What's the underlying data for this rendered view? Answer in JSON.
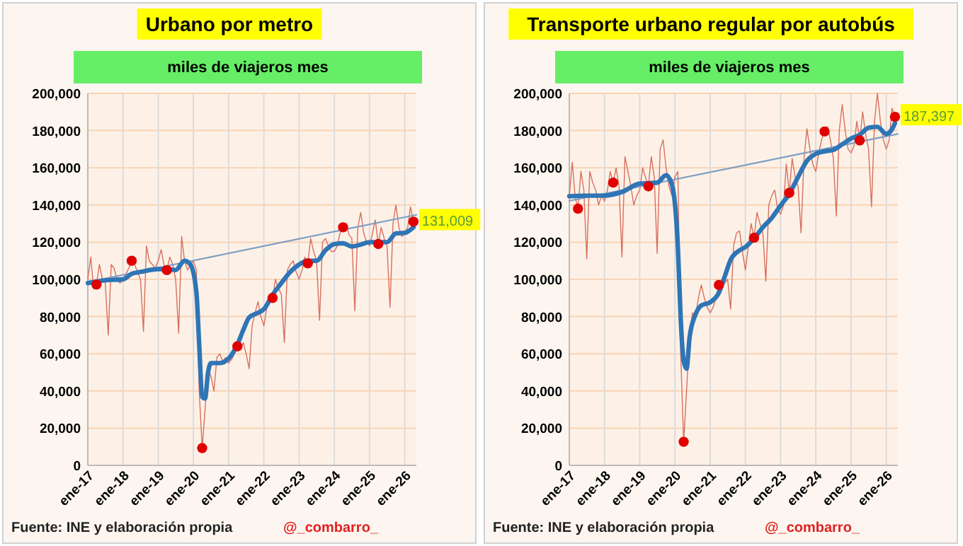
{
  "chart_data": [
    {
      "type": "line",
      "title": "Urbano por metro",
      "subtitle": "miles de viajeros mes",
      "grid": true,
      "legend": false,
      "xlim": [
        "2017-01",
        "2026-05"
      ],
      "xticks": [
        {
          "value": "2017-01",
          "label": "ene-17"
        },
        {
          "value": "2018-01",
          "label": "ene-18"
        },
        {
          "value": "2019-01",
          "label": "ene-19"
        },
        {
          "value": "2020-01",
          "label": "ene-20"
        },
        {
          "value": "2021-01",
          "label": "ene-21"
        },
        {
          "value": "2022-01",
          "label": "ene-22"
        },
        {
          "value": "2023-01",
          "label": "ene-23"
        },
        {
          "value": "2024-01",
          "label": "ene-24"
        },
        {
          "value": "2025-01",
          "label": "ene-25"
        },
        {
          "value": "2026-01",
          "label": "ene-26"
        }
      ],
      "ylim": [
        0,
        200000
      ],
      "yticks": [
        {
          "value": 0,
          "label": "0"
        },
        {
          "value": 20000,
          "label": "20,000"
        },
        {
          "value": 40000,
          "label": "40,000"
        },
        {
          "value": 60000,
          "label": "60,000"
        },
        {
          "value": 80000,
          "label": "80,000"
        },
        {
          "value": 100000,
          "label": "100,000"
        },
        {
          "value": 120000,
          "label": "120,000"
        },
        {
          "value": 140000,
          "label": "140,000"
        },
        {
          "value": 160000,
          "label": "160,000"
        },
        {
          "value": 180000,
          "label": "180,000"
        },
        {
          "value": 200000,
          "label": "200,000"
        }
      ],
      "x": [
        "2017-01",
        "2017-02",
        "2017-03",
        "2017-04",
        "2017-05",
        "2017-06",
        "2017-07",
        "2017-08",
        "2017-09",
        "2017-10",
        "2017-11",
        "2017-12",
        "2018-01",
        "2018-02",
        "2018-03",
        "2018-04",
        "2018-05",
        "2018-06",
        "2018-07",
        "2018-08",
        "2018-09",
        "2018-10",
        "2018-11",
        "2018-12",
        "2019-01",
        "2019-02",
        "2019-03",
        "2019-04",
        "2019-05",
        "2019-06",
        "2019-07",
        "2019-08",
        "2019-09",
        "2019-10",
        "2019-11",
        "2019-12",
        "2020-01",
        "2020-02",
        "2020-03",
        "2020-04",
        "2020-05",
        "2020-06",
        "2020-07",
        "2020-08",
        "2020-09",
        "2020-10",
        "2020-11",
        "2020-12",
        "2021-01",
        "2021-02",
        "2021-03",
        "2021-04",
        "2021-05",
        "2021-06",
        "2021-07",
        "2021-08",
        "2021-09",
        "2021-10",
        "2021-11",
        "2021-12",
        "2022-01",
        "2022-02",
        "2022-03",
        "2022-04",
        "2022-05",
        "2022-06",
        "2022-07",
        "2022-08",
        "2022-09",
        "2022-10",
        "2022-11",
        "2022-12",
        "2023-01",
        "2023-02",
        "2023-03",
        "2023-04",
        "2023-05",
        "2023-06",
        "2023-07",
        "2023-08",
        "2023-09",
        "2023-10",
        "2023-11",
        "2023-12",
        "2024-01",
        "2024-02",
        "2024-03",
        "2024-04",
        "2024-05",
        "2024-06",
        "2024-07",
        "2024-08",
        "2024-09",
        "2024-10",
        "2024-11",
        "2024-12",
        "2025-01",
        "2025-02",
        "2025-03",
        "2025-04",
        "2025-05",
        "2025-06",
        "2025-07",
        "2025-08",
        "2025-09",
        "2025-10",
        "2025-11",
        "2025-12",
        "2026-01",
        "2026-02",
        "2026-03",
        "2026-04"
      ],
      "series": [
        {
          "type": "line",
          "color": "#d8705e",
          "values": [
            100000,
            112000,
            95000,
            97200,
            108000,
            100000,
            98000,
            70000,
            108000,
            106000,
            100000,
            98000,
            100000,
            103000,
            106000,
            110000,
            108000,
            104000,
            100000,
            72000,
            118000,
            110000,
            108000,
            106000,
            110000,
            116000,
            108000,
            105000,
            112000,
            108000,
            100000,
            71000,
            123000,
            110000,
            105000,
            108000,
            110000,
            105000,
            40000,
            9300,
            30000,
            52000,
            48000,
            40000,
            58000,
            60000,
            56000,
            58000,
            55000,
            57000,
            60000,
            64000,
            62000,
            66000,
            60000,
            52000,
            75000,
            82000,
            88000,
            80000,
            75000,
            85000,
            91000,
            90000,
            100000,
            95000,
            92000,
            66000,
            105000,
            108000,
            110000,
            104000,
            100000,
            105000,
            112000,
            108600,
            122000,
            115000,
            110000,
            78000,
            120000,
            122000,
            118000,
            115000,
            115000,
            118000,
            125000,
            128000,
            130000,
            124000,
            122000,
            83000,
            128000,
            136000,
            125000,
            120000,
            118000,
            125000,
            132000,
            119000,
            128000,
            122000,
            118000,
            85000,
            130000,
            140000,
            128000,
            123000,
            125000,
            128000,
            139000,
            131009
          ]
        },
        {
          "type": "line",
          "color": "#2e75b6",
          "x": [
            "2017-01",
            "2017-07",
            "2018-01",
            "2018-04",
            "2018-07",
            "2019-01",
            "2019-04",
            "2019-07",
            "2019-10",
            "2019-12",
            "2020-02",
            "2020-03",
            "2020-04",
            "2020-05",
            "2020-06",
            "2020-07",
            "2020-10",
            "2021-01",
            "2021-04",
            "2021-06",
            "2021-08",
            "2021-11",
            "2022-01",
            "2022-04",
            "2022-07",
            "2022-10",
            "2023-01",
            "2023-04",
            "2023-07",
            "2023-10",
            "2024-01",
            "2024-04",
            "2024-07",
            "2024-10",
            "2025-01",
            "2025-04",
            "2025-07",
            "2025-10",
            "2026-01",
            "2026-04"
          ],
          "values": [
            98000,
            99500,
            100000,
            103000,
            104000,
            105500,
            105500,
            105000,
            110000,
            108000,
            93000,
            65000,
            37000,
            36000,
            50000,
            55000,
            55000,
            57500,
            65000,
            72700,
            79500,
            82000,
            84000,
            91700,
            98000,
            104000,
            108000,
            110000,
            110000,
            115600,
            119000,
            119400,
            117700,
            118700,
            120000,
            120000,
            120000,
            124700,
            125000,
            128000
          ]
        },
        {
          "type": "scatter",
          "color": "#e00000",
          "marker": "circle",
          "x": [
            "2017-04",
            "2018-04",
            "2019-04",
            "2020-04",
            "2021-04",
            "2022-04",
            "2023-04",
            "2024-04",
            "2025-04",
            "2026-04"
          ],
          "values": [
            97200,
            110000,
            105000,
            9300,
            64000,
            90000,
            108600,
            128000,
            119000,
            131009
          ],
          "value_labels": [
            null,
            null,
            null,
            null,
            null,
            null,
            null,
            null,
            null,
            "131,009"
          ]
        },
        {
          "type": "line",
          "color": "#7f9fc4",
          "x": [
            "2017-01",
            "2026-05"
          ],
          "values": [
            98500,
            134700
          ]
        }
      ],
      "annotations": [
        "Fuente: INE  y elaboración propia",
        "@_combarro_"
      ]
    },
    {
      "type": "line",
      "title": "Transporte urbano regular por autobús",
      "subtitle": "miles de viajeros mes",
      "grid": true,
      "legend": false,
      "xlim": [
        "2017-01",
        "2026-05"
      ],
      "xticks": [
        {
          "value": "2017-01",
          "label": "ene-17"
        },
        {
          "value": "2018-01",
          "label": "ene-18"
        },
        {
          "value": "2019-01",
          "label": "ene-19"
        },
        {
          "value": "2020-01",
          "label": "ene-20"
        },
        {
          "value": "2021-01",
          "label": "ene-21"
        },
        {
          "value": "2022-01",
          "label": "ene-22"
        },
        {
          "value": "2023-01",
          "label": "ene-23"
        },
        {
          "value": "2024-01",
          "label": "ene-24"
        },
        {
          "value": "2025-01",
          "label": "ene-25"
        },
        {
          "value": "2026-01",
          "label": "ene-26"
        }
      ],
      "ylim": [
        0,
        200000
      ],
      "yticks": [
        {
          "value": 0,
          "label": "0"
        },
        {
          "value": 20000,
          "label": "20,000"
        },
        {
          "value": 40000,
          "label": "40,000"
        },
        {
          "value": 60000,
          "label": "60,000"
        },
        {
          "value": 80000,
          "label": "80,000"
        },
        {
          "value": 100000,
          "label": "100,000"
        },
        {
          "value": 120000,
          "label": "120,000"
        },
        {
          "value": 140000,
          "label": "140,000"
        },
        {
          "value": 160000,
          "label": "160,000"
        },
        {
          "value": 180000,
          "label": "180,000"
        },
        {
          "value": 200000,
          "label": "200,000"
        }
      ],
      "x": [
        "2017-01",
        "2017-02",
        "2017-03",
        "2017-04",
        "2017-05",
        "2017-06",
        "2017-07",
        "2017-08",
        "2017-09",
        "2017-10",
        "2017-11",
        "2017-12",
        "2018-01",
        "2018-02",
        "2018-03",
        "2018-04",
        "2018-05",
        "2018-06",
        "2018-07",
        "2018-08",
        "2018-09",
        "2018-10",
        "2018-11",
        "2018-12",
        "2019-01",
        "2019-02",
        "2019-03",
        "2019-04",
        "2019-05",
        "2019-06",
        "2019-07",
        "2019-08",
        "2019-09",
        "2019-10",
        "2019-11",
        "2019-12",
        "2020-01",
        "2020-02",
        "2020-03",
        "2020-04",
        "2020-05",
        "2020-06",
        "2020-07",
        "2020-08",
        "2020-09",
        "2020-10",
        "2020-11",
        "2020-12",
        "2021-01",
        "2021-02",
        "2021-03",
        "2021-04",
        "2021-05",
        "2021-06",
        "2021-07",
        "2021-08",
        "2021-09",
        "2021-10",
        "2021-11",
        "2021-12",
        "2022-01",
        "2022-02",
        "2022-03",
        "2022-04",
        "2022-05",
        "2022-06",
        "2022-07",
        "2022-08",
        "2022-09",
        "2022-10",
        "2022-11",
        "2022-12",
        "2023-01",
        "2023-02",
        "2023-03",
        "2023-04",
        "2023-05",
        "2023-06",
        "2023-07",
        "2023-08",
        "2023-09",
        "2023-10",
        "2023-11",
        "2023-12",
        "2024-01",
        "2024-02",
        "2024-03",
        "2024-04",
        "2024-05",
        "2024-06",
        "2024-07",
        "2024-08",
        "2024-09",
        "2024-10",
        "2024-11",
        "2024-12",
        "2025-01",
        "2025-02",
        "2025-03",
        "2025-04",
        "2025-05",
        "2025-06",
        "2025-07",
        "2025-08",
        "2025-09",
        "2025-10",
        "2025-11",
        "2025-12",
        "2026-01",
        "2026-02",
        "2026-03",
        "2026-04"
      ],
      "series": [
        {
          "type": "line",
          "color": "#d8705e",
          "values": [
            145000,
            163000,
            145000,
            138000,
            158000,
            148000,
            111000,
            158000,
            152000,
            148000,
            140000,
            145000,
            142000,
            148000,
            158000,
            152000,
            160000,
            150000,
            112000,
            166000,
            158000,
            150000,
            140000,
            145000,
            148000,
            160000,
            155000,
            150000,
            166000,
            155000,
            114000,
            170000,
            175000,
            160000,
            150000,
            145000,
            155000,
            158000,
            60000,
            12700,
            40000,
            70000,
            82000,
            80000,
            90000,
            97000,
            90000,
            85000,
            82000,
            85000,
            90000,
            97000,
            100000,
            98000,
            100000,
            84000,
            118000,
            125000,
            126000,
            115000,
            105000,
            118000,
            130000,
            122400,
            136000,
            130000,
            125000,
            99000,
            140000,
            145000,
            148000,
            138000,
            135000,
            140000,
            162000,
            146500,
            165000,
            155000,
            150000,
            125000,
            165000,
            181000,
            170000,
            162000,
            158000,
            168000,
            175000,
            179500,
            182000,
            175000,
            165000,
            134000,
            180000,
            194000,
            180000,
            170000,
            168000,
            172000,
            185000,
            174700,
            190000,
            178000,
            170000,
            139000,
            185000,
            200000,
            185000,
            175000,
            170000,
            175000,
            192000,
            187397
          ]
        },
        {
          "type": "line",
          "color": "#2e75b6",
          "x": [
            "2017-01",
            "2017-07",
            "2018-01",
            "2018-07",
            "2019-01",
            "2019-07",
            "2019-10",
            "2019-12",
            "2020-02",
            "2020-03",
            "2020-04",
            "2020-05",
            "2020-06",
            "2020-08",
            "2020-10",
            "2021-01",
            "2021-04",
            "2021-06",
            "2021-08",
            "2021-11",
            "2022-01",
            "2022-04",
            "2022-07",
            "2022-10",
            "2023-01",
            "2023-04",
            "2023-07",
            "2023-10",
            "2024-01",
            "2024-04",
            "2024-07",
            "2024-10",
            "2025-01",
            "2025-04",
            "2025-07",
            "2025-10",
            "2026-01",
            "2026-03",
            "2026-04"
          ],
          "values": [
            144700,
            145000,
            145000,
            147000,
            151500,
            152000,
            156000,
            151000,
            117000,
            79000,
            56000,
            52000,
            68700,
            81000,
            86000,
            87700,
            92800,
            101600,
            110500,
            115600,
            117400,
            122000,
            128000,
            133000,
            139700,
            146000,
            155000,
            163700,
            167500,
            168800,
            169600,
            172600,
            175700,
            177700,
            181500,
            182000,
            178200,
            180700,
            184000
          ]
        },
        {
          "type": "scatter",
          "color": "#e00000",
          "marker": "circle",
          "x": [
            "2017-04",
            "2018-04",
            "2019-04",
            "2020-04",
            "2021-04",
            "2022-04",
            "2023-04",
            "2024-04",
            "2025-04",
            "2026-04"
          ],
          "values": [
            138000,
            152000,
            150000,
            12700,
            97000,
            122400,
            146500,
            179500,
            174700,
            187397
          ],
          "value_labels": [
            null,
            null,
            null,
            null,
            null,
            null,
            null,
            null,
            null,
            "187,397"
          ]
        },
        {
          "type": "line",
          "color": "#7f9fc4",
          "x": [
            "2017-01",
            "2026-05"
          ],
          "values": [
            142200,
            178200
          ]
        }
      ],
      "annotations": [
        "Fuente: INE  y elaboración propia",
        "@_combarro_"
      ]
    }
  ]
}
